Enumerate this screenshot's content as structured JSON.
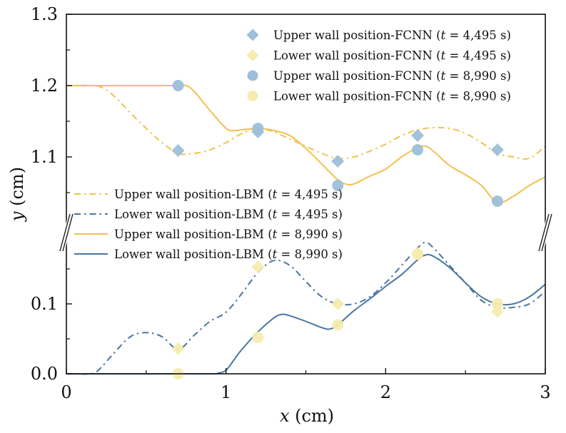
{
  "chart_data": {
    "type": "line",
    "title": "",
    "xlabel": "x (cm)",
    "ylabel": "y (cm)",
    "xlabel_var": "x",
    "ylabel_var": "y",
    "axis_unit": " (cm)",
    "xlim": [
      0,
      3
    ],
    "x_ticks": [
      0,
      1,
      2,
      3
    ],
    "x_tick_labels": [
      "0",
      "1",
      "2",
      "3"
    ],
    "x_minor_ticks": [
      0.5,
      1.5,
      2.5
    ],
    "broken_y_axis": true,
    "panels": {
      "upper": {
        "ylim": [
          1.03,
          1.3
        ],
        "y_ticks": [
          1.1,
          1.2,
          1.3
        ],
        "y_tick_labels": [
          "1.1",
          "1.2",
          "1.3"
        ],
        "y_minor_ticks": [
          1.05,
          1.15,
          1.25
        ]
      },
      "lower": {
        "ylim": [
          0.0,
          0.19
        ],
        "y_ticks": [
          0.0,
          0.1
        ],
        "y_tick_labels": [
          "0.0",
          "0.1"
        ],
        "y_minor_ticks": [
          0.05,
          0.15
        ]
      }
    },
    "grid": false,
    "colors": {
      "upper_wall": "#f2c14e",
      "lower_wall": "#4a76a1",
      "fcnn_upper_marker": "#9dbfd9",
      "fcnn_lower_marker": "#f6ecb0"
    },
    "legends": [
      {
        "placement": "top-right",
        "entries": [
          {
            "label": "Upper wall position-FCNN (",
            "t_var": "t",
            "t_value": " = 4,495 s)",
            "marker": "diamond",
            "color": "#9dbfd9"
          },
          {
            "label": "Lower wall position-FCNN (",
            "t_var": "t",
            "t_value": " = 4,495 s)",
            "marker": "diamond",
            "color": "#f6ecb0"
          },
          {
            "label": "Upper wall position-FCNN (",
            "t_var": "t",
            "t_value": " = 8,990 s)",
            "marker": "circle",
            "color": "#9dbfd9"
          },
          {
            "label": "Lower wall position-FCNN (",
            "t_var": "t",
            "t_value": " = 8,990 s)",
            "marker": "circle",
            "color": "#f6ecb0"
          }
        ]
      },
      {
        "placement": "center-left",
        "entries": [
          {
            "label": "Upper wall position-LBM (",
            "t_var": "t",
            "t_value": " = 4,495 s)",
            "line": "dashdot",
            "color": "#f2c14e"
          },
          {
            "label": "Lower wall position-LBM (",
            "t_var": "t",
            "t_value": " = 4,495 s)",
            "line": "dashdot",
            "color": "#4a76a1"
          },
          {
            "label": "Upper wall position-LBM (",
            "t_var": "t",
            "t_value": " = 8,990 s)",
            "line": "solid",
            "color": "#f2c14e"
          },
          {
            "label": "Lower wall position-LBM (",
            "t_var": "t",
            "t_value": " = 8,990 s)",
            "line": "solid",
            "color": "#4a76a1"
          }
        ]
      }
    ],
    "series": [
      {
        "name": "Upper wall position-LBM (t = 4,495 s)",
        "panel": "upper",
        "style": "dashdot",
        "color": "#f2c14e",
        "x": [
          0,
          0.2,
          0.3,
          0.4,
          0.5,
          0.6,
          0.7,
          0.8,
          0.9,
          1.0,
          1.1,
          1.2,
          1.3,
          1.4,
          1.5,
          1.6,
          1.7,
          1.8,
          1.9,
          2.0,
          2.1,
          2.2,
          2.3,
          2.4,
          2.5,
          2.6,
          2.7,
          2.8,
          2.9,
          3.0
        ],
        "y": [
          1.2,
          1.199,
          1.185,
          1.162,
          1.14,
          1.12,
          1.105,
          1.105,
          1.11,
          1.12,
          1.133,
          1.14,
          1.135,
          1.125,
          1.115,
          1.105,
          1.098,
          1.1,
          1.108,
          1.118,
          1.13,
          1.138,
          1.141,
          1.14,
          1.133,
          1.12,
          1.105,
          1.1,
          1.098,
          1.115
        ]
      },
      {
        "name": "Upper wall position-LBM (t = 8,990 s)",
        "panel": "upper",
        "style": "solid",
        "color": "#f2c14e",
        "x": [
          0,
          0.2,
          0.4,
          0.6,
          0.7,
          0.75,
          0.8,
          0.9,
          1.0,
          1.05,
          1.1,
          1.2,
          1.3,
          1.4,
          1.5,
          1.6,
          1.7,
          1.75,
          1.8,
          1.9,
          2.0,
          2.1,
          2.2,
          2.25,
          2.3,
          2.4,
          2.5,
          2.6,
          2.7,
          2.8,
          2.9,
          3.0
        ],
        "y": [
          1.2,
          1.2,
          1.2,
          1.2,
          1.2,
          1.2,
          1.192,
          1.165,
          1.14,
          1.137,
          1.138,
          1.14,
          1.137,
          1.13,
          1.112,
          1.09,
          1.068,
          1.062,
          1.062,
          1.073,
          1.083,
          1.1,
          1.113,
          1.115,
          1.108,
          1.088,
          1.075,
          1.06,
          1.036,
          1.045,
          1.06,
          1.072
        ]
      },
      {
        "name": "Lower wall position-LBM (t = 4,495 s)",
        "panel": "lower",
        "style": "dashdot",
        "color": "#4a76a1",
        "x": [
          0,
          0.15,
          0.2,
          0.3,
          0.4,
          0.5,
          0.6,
          0.7,
          0.8,
          0.9,
          1.0,
          1.1,
          1.2,
          1.3,
          1.4,
          1.5,
          1.6,
          1.7,
          1.8,
          1.9,
          2.0,
          2.1,
          2.2,
          2.25,
          2.3,
          2.4,
          2.5,
          2.6,
          2.7,
          2.8,
          2.9,
          3.0
        ],
        "y": [
          0.0,
          0.0,
          0.005,
          0.03,
          0.053,
          0.059,
          0.053,
          0.035,
          0.055,
          0.075,
          0.088,
          0.115,
          0.145,
          0.162,
          0.155,
          0.132,
          0.11,
          0.1,
          0.1,
          0.11,
          0.13,
          0.155,
          0.18,
          0.188,
          0.18,
          0.155,
          0.13,
          0.105,
          0.095,
          0.095,
          0.1,
          0.118
        ]
      },
      {
        "name": "Lower wall position-LBM (t = 8,990 s)",
        "panel": "lower",
        "style": "solid",
        "color": "#4a76a1",
        "x": [
          0,
          0.5,
          0.9,
          0.95,
          1.0,
          1.05,
          1.1,
          1.2,
          1.3,
          1.35,
          1.4,
          1.5,
          1.6,
          1.65,
          1.7,
          1.8,
          1.9,
          2.0,
          2.1,
          2.2,
          2.25,
          2.3,
          2.4,
          2.5,
          2.6,
          2.7,
          2.8,
          2.9,
          3.0
        ],
        "y": [
          0.0,
          0.0,
          0.0,
          0.001,
          0.005,
          0.02,
          0.035,
          0.06,
          0.08,
          0.085,
          0.083,
          0.075,
          0.066,
          0.064,
          0.07,
          0.09,
          0.107,
          0.125,
          0.142,
          0.163,
          0.17,
          0.168,
          0.152,
          0.13,
          0.11,
          0.1,
          0.1,
          0.11,
          0.128
        ]
      },
      {
        "name": "Upper wall position-FCNN (t = 4,495 s)",
        "panel": "upper",
        "marker": "diamond",
        "color": "#9dbfd9",
        "x": [
          0.7,
          1.2,
          1.7,
          2.2,
          2.7
        ],
        "y": [
          1.109,
          1.135,
          1.094,
          1.13,
          1.11
        ]
      },
      {
        "name": "Upper wall position-FCNN (t = 8,990 s)",
        "panel": "upper",
        "marker": "circle",
        "color": "#9dbfd9",
        "x": [
          0.7,
          1.2,
          1.7,
          2.2,
          2.7
        ],
        "y": [
          1.2,
          1.14,
          1.06,
          1.11,
          1.038
        ]
      },
      {
        "name": "Lower wall position-FCNN (t = 4,495 s)",
        "panel": "lower",
        "marker": "diamond",
        "color": "#f6ecb0",
        "x": [
          0.7,
          1.2,
          1.7,
          2.2,
          2.7
        ],
        "y": [
          0.036,
          0.153,
          0.1,
          0.172,
          0.089
        ]
      },
      {
        "name": "Lower wall position-FCNN (t = 8,990 s)",
        "panel": "lower",
        "marker": "circle",
        "color": "#f6ecb0",
        "x": [
          0.7,
          1.2,
          1.7,
          2.2,
          2.7
        ],
        "y": [
          0.0,
          0.052,
          0.07,
          0.171,
          0.1
        ]
      }
    ]
  }
}
